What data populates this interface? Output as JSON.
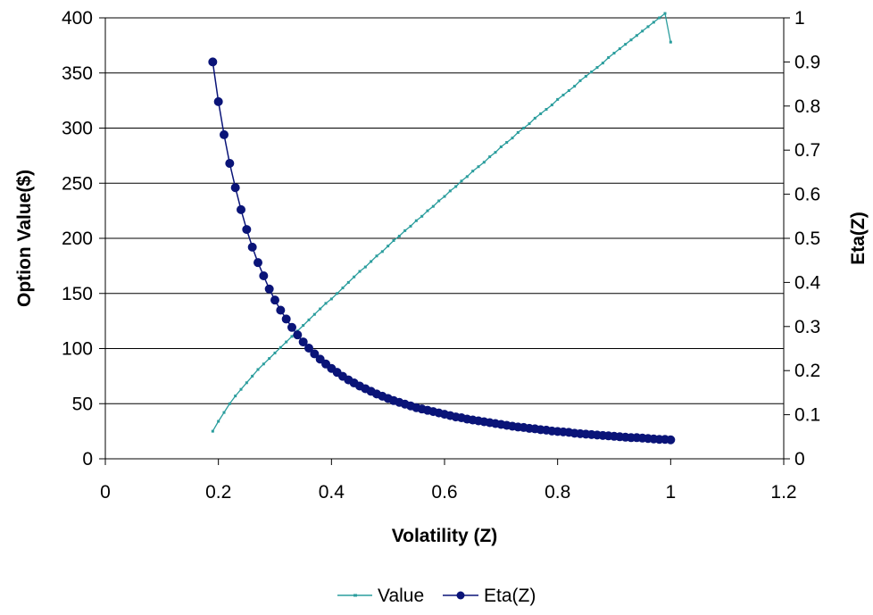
{
  "chart_data": {
    "type": "line",
    "title": "",
    "xlabel": "Volatility (Z)",
    "ylabel": "Option Value($)",
    "y2label": "Eta(Z)",
    "xlim": [
      0,
      1.2
    ],
    "ylim": [
      0,
      400
    ],
    "y2lim": [
      0,
      1
    ],
    "x_ticks": [
      "0",
      "0.2",
      "0.4",
      "0.6",
      "0.8",
      "1",
      "1.2"
    ],
    "y_ticks": [
      "0",
      "50",
      "100",
      "150",
      "200",
      "250",
      "300",
      "350",
      "400"
    ],
    "y2_ticks": [
      "0",
      "0.1",
      "0.2",
      "0.3",
      "0.4",
      "0.5",
      "0.6",
      "0.7",
      "0.8",
      "0.9",
      "1"
    ],
    "grid": true,
    "legend_position": "bottom",
    "series": [
      {
        "name": "Value",
        "axis": "left",
        "color": "#2a9d9d",
        "marker": "dash",
        "x": [
          0.19,
          0.2,
          0.21,
          0.22,
          0.23,
          0.24,
          0.25,
          0.26,
          0.27,
          0.28,
          0.29,
          0.3,
          0.31,
          0.32,
          0.33,
          0.34,
          0.35,
          0.36,
          0.37,
          0.38,
          0.39,
          0.4,
          0.41,
          0.42,
          0.43,
          0.44,
          0.45,
          0.46,
          0.47,
          0.48,
          0.49,
          0.5,
          0.51,
          0.52,
          0.53,
          0.54,
          0.55,
          0.56,
          0.57,
          0.58,
          0.59,
          0.6,
          0.61,
          0.62,
          0.63,
          0.64,
          0.65,
          0.66,
          0.67,
          0.68,
          0.69,
          0.7,
          0.71,
          0.72,
          0.73,
          0.74,
          0.75,
          0.76,
          0.77,
          0.78,
          0.79,
          0.8,
          0.81,
          0.82,
          0.83,
          0.84,
          0.85,
          0.86,
          0.87,
          0.88,
          0.89,
          0.9,
          0.91,
          0.92,
          0.93,
          0.94,
          0.95,
          0.96,
          0.97,
          0.98,
          0.99,
          1.0
        ],
        "values": [
          25,
          34,
          42,
          50,
          57,
          63,
          69,
          75,
          81,
          86,
          91,
          96,
          101,
          106,
          111,
          116,
          121,
          126,
          131,
          136,
          141,
          145,
          150,
          155,
          160,
          165,
          170,
          174,
          179,
          184,
          188,
          193,
          198,
          202,
          207,
          211,
          216,
          220,
          225,
          229,
          234,
          238,
          243,
          247,
          252,
          256,
          261,
          265,
          269,
          274,
          278,
          283,
          287,
          291,
          296,
          300,
          304,
          309,
          313,
          317,
          321,
          326,
          330,
          334,
          338,
          343,
          347,
          351,
          355,
          359,
          364,
          368,
          372,
          376,
          380,
          384,
          388,
          392,
          396,
          400,
          404,
          378
        ]
      },
      {
        "name": "Eta(Z)",
        "axis": "right",
        "color": "#0a1478",
        "marker": "circle",
        "x": [
          0.19,
          0.2,
          0.21,
          0.22,
          0.23,
          0.24,
          0.25,
          0.26,
          0.27,
          0.28,
          0.29,
          0.3,
          0.31,
          0.32,
          0.33,
          0.34,
          0.35,
          0.36,
          0.37,
          0.38,
          0.39,
          0.4,
          0.41,
          0.42,
          0.43,
          0.44,
          0.45,
          0.46,
          0.47,
          0.48,
          0.49,
          0.5,
          0.51,
          0.52,
          0.53,
          0.54,
          0.55,
          0.56,
          0.57,
          0.58,
          0.59,
          0.6,
          0.61,
          0.62,
          0.63,
          0.64,
          0.65,
          0.66,
          0.67,
          0.68,
          0.69,
          0.7,
          0.71,
          0.72,
          0.73,
          0.74,
          0.75,
          0.76,
          0.77,
          0.78,
          0.79,
          0.8,
          0.81,
          0.82,
          0.83,
          0.84,
          0.85,
          0.86,
          0.87,
          0.88,
          0.89,
          0.9,
          0.91,
          0.92,
          0.93,
          0.94,
          0.95,
          0.96,
          0.97,
          0.98,
          0.99,
          1.0
        ],
        "values": [
          0.9,
          0.81,
          0.735,
          0.67,
          0.615,
          0.565,
          0.52,
          0.48,
          0.445,
          0.415,
          0.385,
          0.36,
          0.337,
          0.317,
          0.298,
          0.281,
          0.265,
          0.251,
          0.238,
          0.226,
          0.215,
          0.205,
          0.196,
          0.187,
          0.179,
          0.172,
          0.165,
          0.159,
          0.153,
          0.147,
          0.142,
          0.137,
          0.132,
          0.128,
          0.124,
          0.12,
          0.116,
          0.113,
          0.11,
          0.107,
          0.104,
          0.101,
          0.098,
          0.095,
          0.093,
          0.09,
          0.088,
          0.086,
          0.084,
          0.082,
          0.08,
          0.078,
          0.076,
          0.074,
          0.072,
          0.071,
          0.069,
          0.068,
          0.066,
          0.065,
          0.063,
          0.062,
          0.061,
          0.06,
          0.058,
          0.057,
          0.056,
          0.055,
          0.054,
          0.053,
          0.052,
          0.051,
          0.05,
          0.049,
          0.048,
          0.048,
          0.047,
          0.046,
          0.045,
          0.044,
          0.044,
          0.043
        ]
      }
    ]
  }
}
